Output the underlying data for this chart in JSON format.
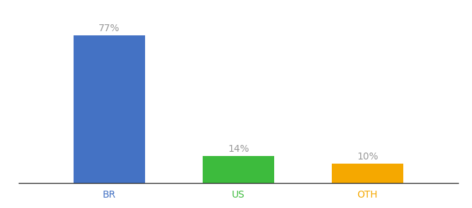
{
  "categories": [
    "BR",
    "US",
    "OTH"
  ],
  "values": [
    77,
    14,
    10
  ],
  "labels": [
    "77%",
    "14%",
    "10%"
  ],
  "bar_colors": [
    "#4472c4",
    "#3dbb3d",
    "#f5a800"
  ],
  "background_color": "#ffffff",
  "label_color": "#999999",
  "label_fontsize": 10,
  "tick_fontsize": 10,
  "bar_width": 0.55,
  "ylim": [
    0,
    88
  ],
  "figsize": [
    6.8,
    3.0
  ],
  "dpi": 100
}
